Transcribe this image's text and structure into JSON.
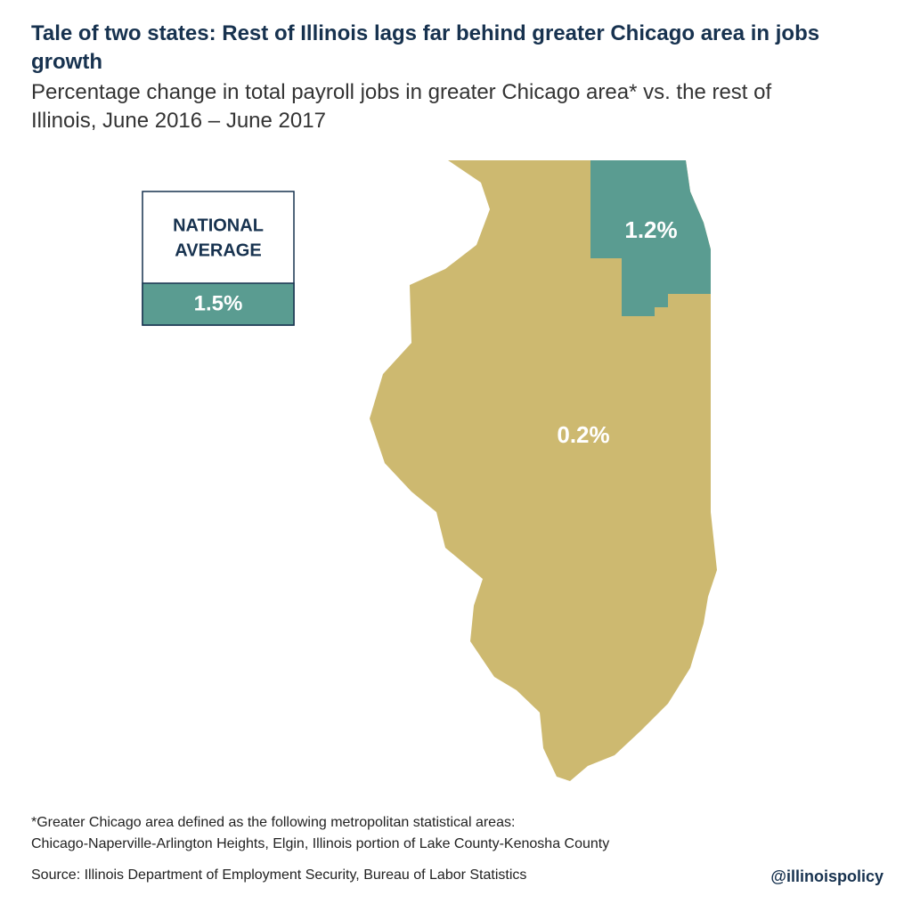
{
  "header": {
    "title": "Tale of two states: Rest of Illinois lags far behind greater Chicago area in jobs growth",
    "subtitle": "Percentage change in total payroll jobs in greater Chicago area* vs. the rest of Illinois, June 2016 – June 2017"
  },
  "national_average": {
    "label": [
      "NATIONAL",
      "AVERAGE"
    ],
    "value": "1.5%"
  },
  "regions": [
    {
      "name": "Greater Chicago area",
      "label": "1.2%"
    },
    {
      "name": "Rest of Illinois",
      "label": "0.2%"
    }
  ],
  "footnote": [
    "*Greater Chicago area defined as the following metropolitan statistical areas:",
    "Chicago-Naperville-Arlington Heights, Elgin, Illinois portion of Lake County-Kenosha County"
  ],
  "source": "Source: Illinois Department of Employment Security, Bureau of Labor Statistics",
  "handle": "@illinoispolicy"
}
